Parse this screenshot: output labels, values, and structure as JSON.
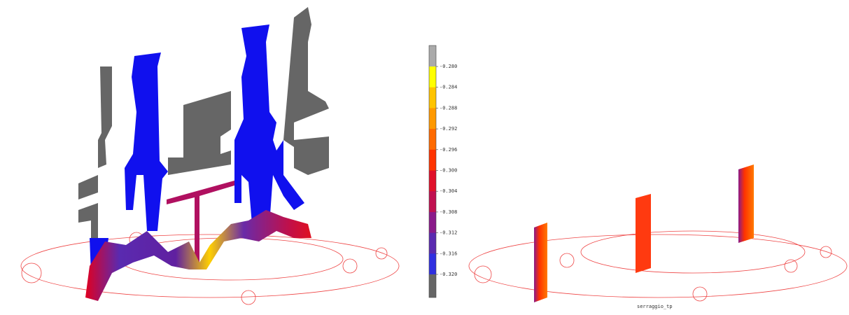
{
  "colorbar": {
    "labels": [
      "-0.280",
      "-0.284",
      "-0.288",
      "-0.292",
      "-0.296",
      "-0.300",
      "-0.304",
      "-0.308",
      "-0.312",
      "-0.316",
      "-0.320"
    ]
  },
  "caption": "serraggio_tp"
}
